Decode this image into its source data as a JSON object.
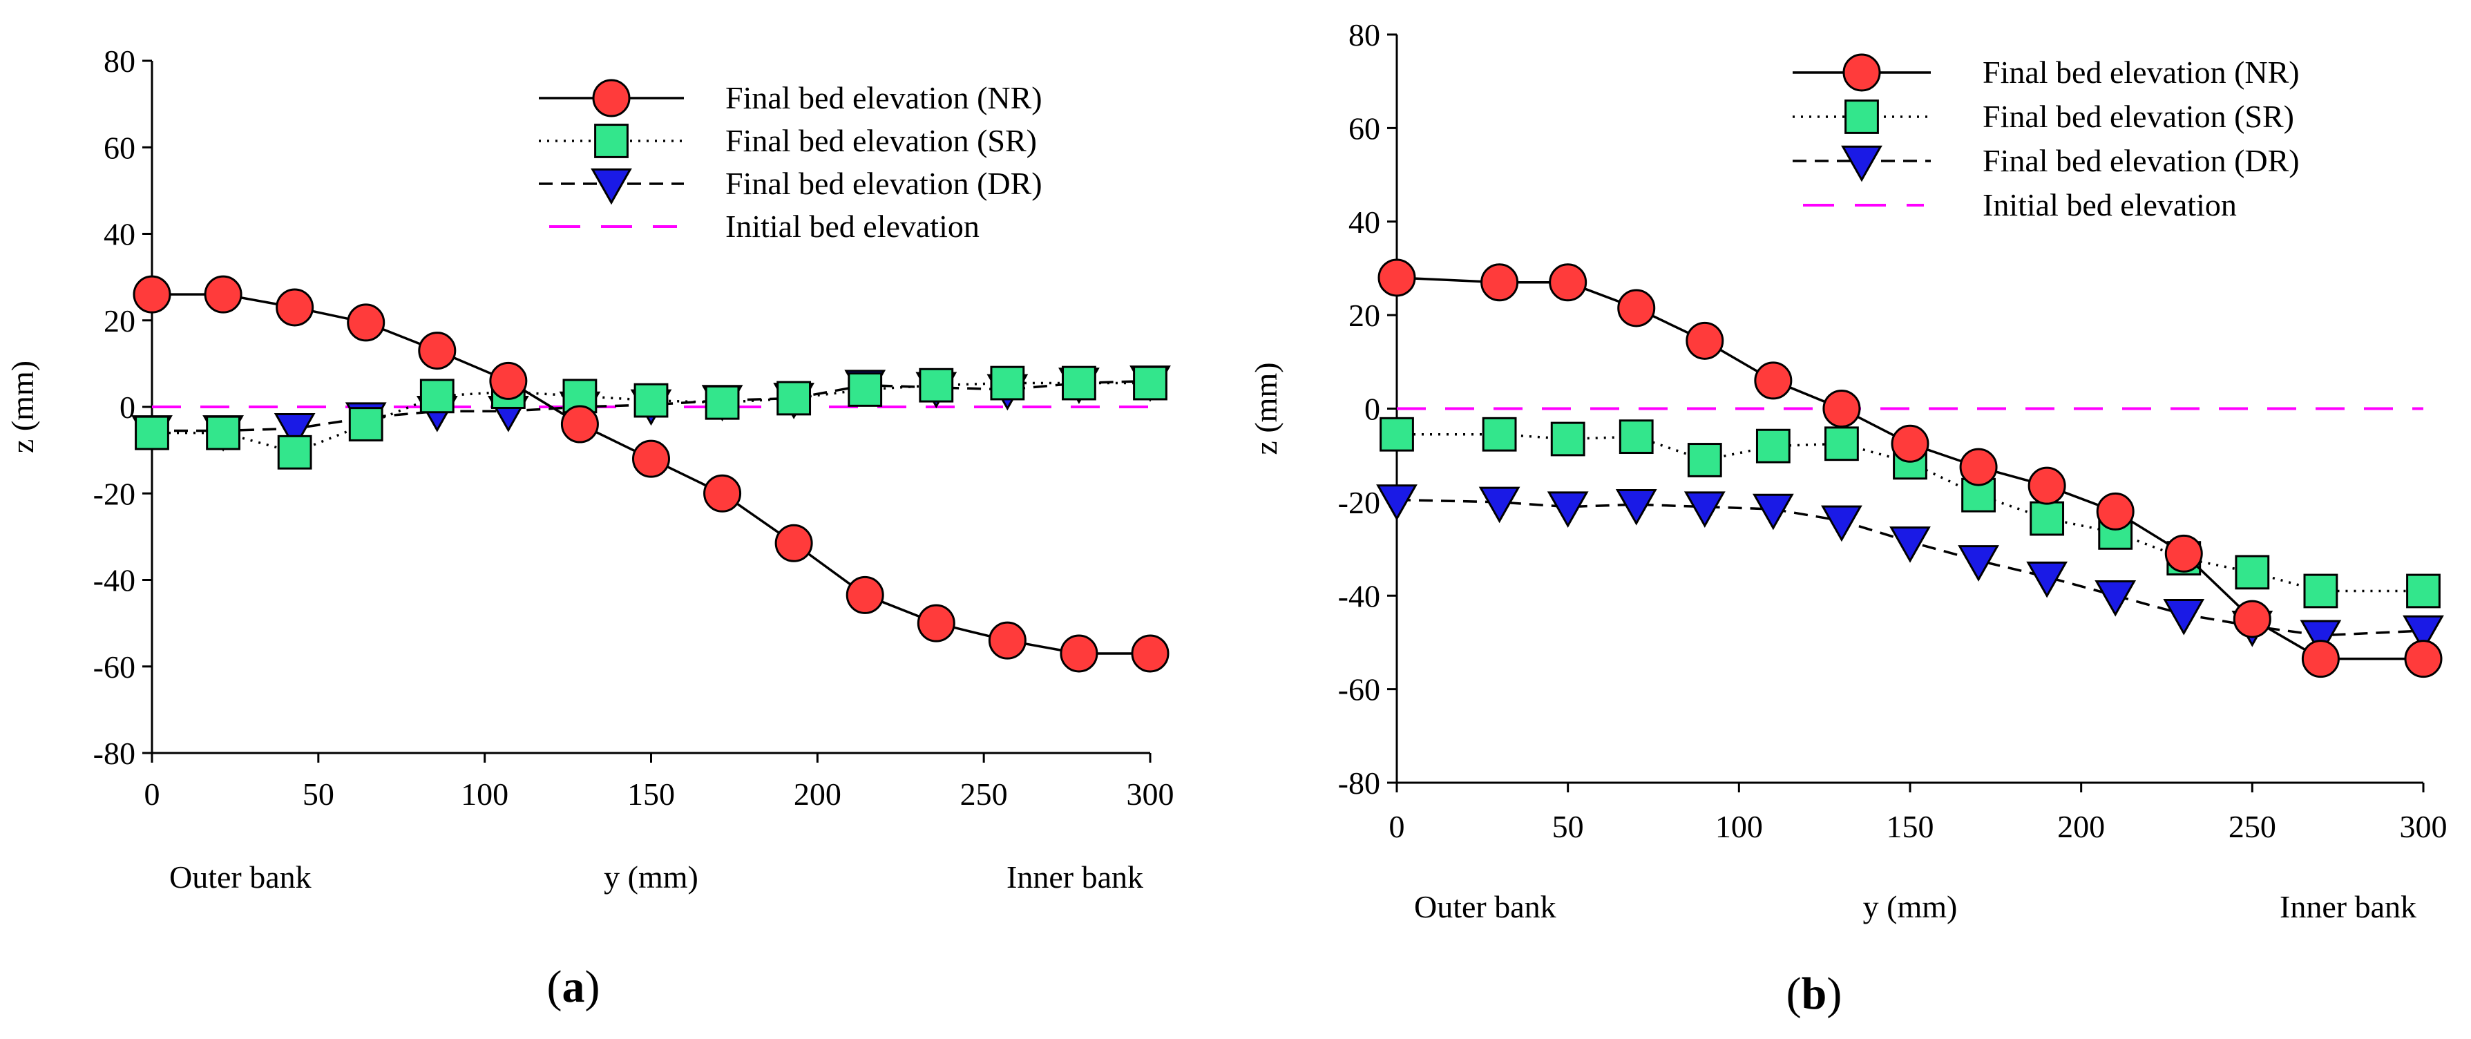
{
  "chart_data": [
    {
      "panel_label": "(a)",
      "panel_letter": "a",
      "type": "line",
      "ylabel": "z (mm)",
      "xlabel": "y (mm)",
      "x_left_label": "Outer bank",
      "x_right_label": "Inner bank",
      "xlim": [
        0,
        300
      ],
      "ylim": [
        -80,
        80
      ],
      "xticks": [
        0,
        50,
        100,
        150,
        200,
        250,
        300
      ],
      "yticks": [
        80,
        60,
        40,
        20,
        0,
        -20,
        -40,
        -60,
        -80
      ],
      "grid": false,
      "legend_position": "top-right",
      "initial_bed_elevation": 0,
      "series": [
        {
          "name": "Final bed elevation (NR)",
          "marker": "circle",
          "line": "solid",
          "color": "#ff3b3b",
          "x": [
            0,
            21.4,
            42.9,
            64.3,
            85.7,
            107.1,
            128.6,
            150,
            171.4,
            192.9,
            214.3,
            235.7,
            257.1,
            278.6,
            300
          ],
          "y": [
            26,
            26,
            23,
            19.5,
            13,
            6,
            -4,
            -12,
            -20,
            -31.5,
            -43.5,
            -50,
            -54,
            -57,
            -57
          ]
        },
        {
          "name": "Final bed elevation (SR)",
          "marker": "square",
          "line": "dotted",
          "color": "#33e68c",
          "x": [
            0,
            21.4,
            42.9,
            64.3,
            85.7,
            107.1,
            128.6,
            150,
            171.4,
            192.9,
            214.3,
            235.7,
            257.1,
            278.6,
            300
          ],
          "y": [
            -6,
            -6,
            -10.5,
            -4,
            2.5,
            3.5,
            2.5,
            1.5,
            1,
            2,
            4,
            5,
            5.5,
            5.5,
            5.5
          ]
        },
        {
          "name": "Final bed elevation (DR)",
          "marker": "triangle-down",
          "line": "dashed",
          "color": "#1a1ae6",
          "x": [
            0,
            21.4,
            42.9,
            64.3,
            85.7,
            107.1,
            128.6,
            150,
            171.4,
            192.9,
            214.3,
            235.7,
            257.1,
            278.6,
            300
          ],
          "y": [
            -5.5,
            -5.5,
            -5,
            -2.5,
            -1,
            -1,
            0,
            0.5,
            1.5,
            2,
            5,
            4.5,
            4,
            5.5,
            6
          ]
        },
        {
          "name": "Initial bed elevation",
          "marker": "none",
          "line": "dashed",
          "color": "#ff00ff",
          "x": [
            0,
            300
          ],
          "y": [
            0,
            0
          ]
        }
      ]
    },
    {
      "panel_label": "(b)",
      "panel_letter": "b",
      "type": "line",
      "ylabel": "z (mm)",
      "xlabel": "y (mm)",
      "x_left_label": "Outer bank",
      "x_right_label": "Inner bank",
      "xlim": [
        0,
        300
      ],
      "ylim": [
        -80,
        80
      ],
      "xticks": [
        0,
        50,
        100,
        150,
        200,
        250,
        300
      ],
      "yticks": [
        80,
        60,
        40,
        20,
        0,
        -20,
        -40,
        -60,
        -80
      ],
      "grid": false,
      "legend_position": "top-right",
      "initial_bed_elevation": 0,
      "series": [
        {
          "name": "Final bed elevation (NR)",
          "marker": "circle",
          "line": "solid",
          "color": "#ff3b3b",
          "x": [
            0,
            30,
            50,
            70,
            90,
            110,
            130,
            150,
            170,
            190,
            210,
            230,
            250,
            270,
            300
          ],
          "y": [
            28,
            27,
            27,
            21.5,
            14.5,
            6,
            0,
            -7.5,
            -12.5,
            -16.5,
            -22,
            -31,
            -45,
            -53.5,
            -53.5
          ]
        },
        {
          "name": "Final bed elevation (SR)",
          "marker": "square",
          "line": "dotted",
          "color": "#33e68c",
          "x": [
            0,
            30,
            50,
            70,
            90,
            110,
            130,
            150,
            170,
            190,
            210,
            230,
            250,
            270,
            300
          ],
          "y": [
            -5.5,
            -5.5,
            -6.5,
            -6,
            -11,
            -8,
            -7.5,
            -11.5,
            -18.5,
            -23.5,
            -26.5,
            -32,
            -35,
            -39,
            -39
          ]
        },
        {
          "name": "Final bed elevation (DR)",
          "marker": "triangle-down",
          "line": "dashed",
          "color": "#1a1ae6",
          "x": [
            0,
            30,
            50,
            70,
            90,
            110,
            130,
            150,
            170,
            190,
            210,
            230,
            250,
            270,
            300
          ],
          "y": [
            -19.5,
            -20,
            -21,
            -20.5,
            -21,
            -21.5,
            -24,
            -28.5,
            -32.5,
            -36,
            -40,
            -44,
            -46.5,
            -48.5,
            -47.5
          ]
        },
        {
          "name": "Initial bed elevation",
          "marker": "none",
          "line": "dashed",
          "color": "#ff00ff",
          "x": [
            0,
            300
          ],
          "y": [
            0,
            0
          ]
        }
      ]
    }
  ]
}
